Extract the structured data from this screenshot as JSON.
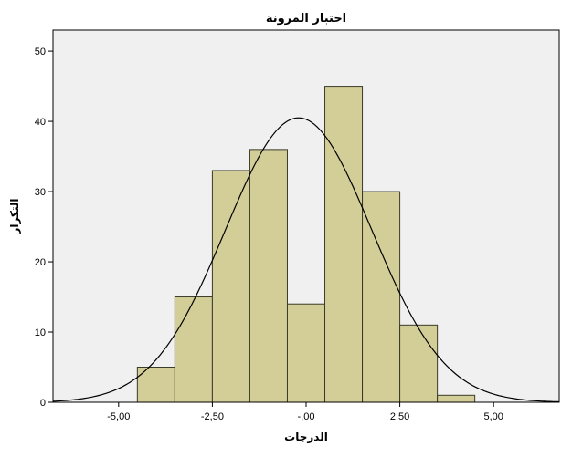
{
  "chart_data": {
    "type": "bar",
    "title": "اختبار المرونة",
    "xlabel": "الدرجات",
    "ylabel": "التكرار",
    "xlim": [
      -6.75,
      6.75
    ],
    "ylim": [
      0,
      53
    ],
    "x_ticks": [
      -5,
      -2.5,
      0,
      2.5,
      5
    ],
    "x_tick_labels": [
      "-5,00",
      "-2,50",
      "-,00",
      "2,50",
      "5,00"
    ],
    "y_ticks": [
      0,
      10,
      20,
      30,
      40,
      50
    ],
    "y_tick_labels": [
      "0",
      "10",
      "20",
      "30",
      "40",
      "50"
    ],
    "bins": [
      {
        "x0": -4.5,
        "x1": -3.5,
        "count": 5
      },
      {
        "x0": -3.5,
        "x1": -2.5,
        "count": 15
      },
      {
        "x0": -2.5,
        "x1": -1.5,
        "count": 33
      },
      {
        "x0": -1.5,
        "x1": -0.5,
        "count": 36
      },
      {
        "x0": -0.5,
        "x1": 0.5,
        "count": 14
      },
      {
        "x0": 0.5,
        "x1": 1.5,
        "count": 45
      },
      {
        "x0": 1.5,
        "x1": 2.5,
        "count": 30
      },
      {
        "x0": 2.5,
        "x1": 3.5,
        "count": 11
      },
      {
        "x0": 3.5,
        "x1": 4.5,
        "count": 1
      }
    ],
    "normal_curve": {
      "mean": -0.2,
      "sd": 1.95,
      "peak": 40.5
    },
    "grid": false,
    "colors": {
      "bar_fill": "#d3ce97",
      "bar_stroke": "#3a3a2a",
      "plot_bg": "#f0f0f0",
      "curve": "#000000"
    }
  }
}
